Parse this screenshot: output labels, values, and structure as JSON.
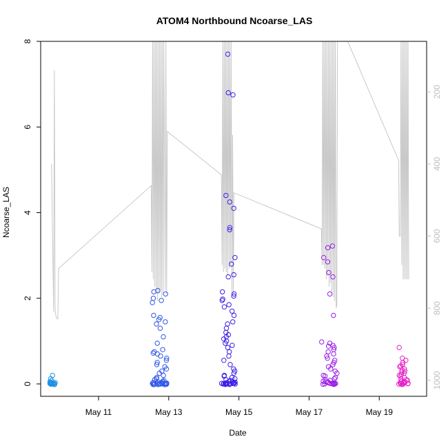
{
  "chart_data": {
    "type": "scatter",
    "title": "ATOM4 Northbound Ncoarse_LAS",
    "xlabel": "Date",
    "ylabel": "Ncoarse_LAS",
    "x_ticks": [
      {
        "label": "May 11",
        "day": 11
      },
      {
        "label": "May 13",
        "day": 13
      },
      {
        "label": "May 15",
        "day": 15
      },
      {
        "label": "May 17",
        "day": 17
      },
      {
        "label": "May 19",
        "day": 19
      }
    ],
    "xlim_days": [
      9.35,
      20.35
    ],
    "ylim": [
      0,
      8
    ],
    "y_ticks": [
      0,
      2,
      4,
      6,
      8
    ],
    "secondary_axis": {
      "ticks": [
        200,
        400,
        600,
        800,
        1000
      ],
      "lim": [
        1010,
        60
      ],
      "color": "#bdbdbd",
      "line_color": "#c8c8c8"
    },
    "clusters": [
      {
        "day_range": [
          9.6,
          9.78
        ],
        "color": "#1e90e6",
        "values": [
          0.2,
          0.12,
          0.08,
          0.05,
          0.03,
          0.02,
          0.01,
          0.0,
          0.0,
          0.0,
          0.01,
          0.02,
          0.0,
          0.0,
          0.04,
          0.0,
          0.0,
          0.0,
          0.0
        ]
      },
      {
        "day_range": [
          12.5,
          12.95
        ],
        "color": "#2f56e8",
        "values": [
          2.18,
          2.15,
          2.1,
          2.0,
          1.95,
          1.9,
          1.6,
          1.55,
          1.5,
          1.45,
          1.4,
          1.3,
          1.1,
          0.95,
          0.8,
          0.75,
          0.72,
          0.7,
          0.65,
          0.6,
          0.55,
          0.5,
          0.45,
          0.4,
          0.35,
          0.3,
          0.25,
          0.2,
          0.15,
          0.12,
          0.1,
          0.08,
          0.06,
          0.05,
          0.04,
          0.03,
          0.02,
          0.02,
          0.01,
          0.01,
          0.0,
          0.0,
          0.0,
          0.0,
          0.0,
          0.0,
          0.0,
          0.0,
          0.0,
          0.0,
          0.0,
          0.0,
          0.0,
          0.0
        ]
      },
      {
        "day_range": [
          14.5,
          14.9
        ],
        "color": "#3a1ee6",
        "values": [
          7.7,
          6.8,
          6.75,
          4.4,
          4.25,
          4.1,
          3.65,
          3.6,
          2.95,
          2.8,
          2.55,
          2.5,
          2.15,
          2.1,
          2.05,
          1.98,
          1.95,
          1.85,
          1.8,
          1.7,
          1.6,
          1.45,
          1.4,
          1.3,
          1.2,
          1.15,
          1.1,
          1.05,
          1.0,
          0.95,
          0.9,
          0.85,
          0.75,
          0.65,
          0.55,
          0.45,
          0.35,
          0.3,
          0.25,
          0.2,
          0.18,
          0.15,
          0.12,
          0.1,
          0.08,
          0.06,
          0.05,
          0.04,
          0.03,
          0.02,
          0.01,
          0.0,
          0.0,
          0.0,
          0.0,
          0.0,
          0.0,
          0.0,
          0.0,
          0.0,
          0.0,
          0.0,
          0.0,
          0.0
        ]
      },
      {
        "day_range": [
          17.35,
          17.8
        ],
        "color": "#9a1ee6",
        "values": [
          3.22,
          3.18,
          2.95,
          2.85,
          2.6,
          2.5,
          2.1,
          1.6,
          0.98,
          0.95,
          0.9,
          0.88,
          0.85,
          0.8,
          0.75,
          0.7,
          0.65,
          0.6,
          0.55,
          0.5,
          0.45,
          0.4,
          0.35,
          0.3,
          0.25,
          0.2,
          0.18,
          0.15,
          0.12,
          0.1,
          0.08,
          0.06,
          0.05,
          0.04,
          0.03,
          0.02,
          0.01,
          0.0,
          0.0,
          0.0,
          0.0,
          0.0,
          0.0,
          0.0,
          0.0,
          0.0,
          0.0
        ]
      },
      {
        "day_range": [
          19.55,
          19.85
        ],
        "color": "#e61ec8",
        "values": [
          0.85,
          0.6,
          0.55,
          0.5,
          0.45,
          0.42,
          0.4,
          0.35,
          0.32,
          0.3,
          0.28,
          0.25,
          0.22,
          0.2,
          0.18,
          0.15,
          0.12,
          0.1,
          0.08,
          0.06,
          0.05,
          0.04,
          0.03,
          0.02,
          0.01,
          0.0,
          0.0,
          0.0,
          0.0,
          0.0,
          0.0,
          0.0,
          0.0
        ]
      }
    ],
    "secondary_series": [
      [
        9.66,
        400
      ],
      [
        9.72,
        810
      ],
      [
        9.74,
        140
      ],
      [
        9.76,
        800
      ],
      [
        9.78,
        820
      ],
      [
        9.82,
        830
      ],
      [
        9.84,
        830
      ],
      [
        9.86,
        690
      ],
      [
        12.5,
        460
      ],
      [
        12.52,
        700
      ],
      [
        12.54,
        60
      ],
      [
        12.56,
        720
      ],
      [
        12.58,
        60
      ],
      [
        12.6,
        740
      ],
      [
        12.62,
        60
      ],
      [
        12.64,
        760
      ],
      [
        12.66,
        60
      ],
      [
        12.68,
        780
      ],
      [
        12.7,
        60
      ],
      [
        12.72,
        760
      ],
      [
        12.74,
        60
      ],
      [
        12.76,
        750
      ],
      [
        12.78,
        60
      ],
      [
        12.8,
        770
      ],
      [
        12.82,
        60
      ],
      [
        12.84,
        760
      ],
      [
        12.86,
        60
      ],
      [
        12.9,
        750
      ],
      [
        12.92,
        60
      ],
      [
        12.94,
        760
      ],
      [
        12.96,
        310
      ],
      [
        14.5,
        430
      ],
      [
        14.52,
        680
      ],
      [
        14.54,
        60
      ],
      [
        14.56,
        700
      ],
      [
        14.58,
        60
      ],
      [
        14.6,
        690
      ],
      [
        14.62,
        60
      ],
      [
        14.64,
        700
      ],
      [
        14.66,
        60
      ],
      [
        14.68,
        710
      ],
      [
        14.7,
        60
      ],
      [
        14.72,
        690
      ],
      [
        14.74,
        60
      ],
      [
        14.76,
        680
      ],
      [
        14.78,
        60
      ],
      [
        14.8,
        760
      ],
      [
        14.82,
        320
      ],
      [
        14.84,
        760
      ],
      [
        14.86,
        480
      ],
      [
        17.35,
        580
      ],
      [
        17.37,
        680
      ],
      [
        17.39,
        60
      ],
      [
        17.41,
        680
      ],
      [
        17.43,
        60
      ],
      [
        17.45,
        690
      ],
      [
        17.47,
        60
      ],
      [
        17.49,
        720
      ],
      [
        17.51,
        60
      ],
      [
        17.53,
        710
      ],
      [
        17.55,
        60
      ],
      [
        17.57,
        740
      ],
      [
        17.59,
        60
      ],
      [
        17.61,
        730
      ],
      [
        17.63,
        60
      ],
      [
        17.65,
        760
      ],
      [
        17.67,
        60
      ],
      [
        17.69,
        770
      ],
      [
        17.71,
        60
      ],
      [
        17.73,
        780
      ],
      [
        17.75,
        60
      ],
      [
        17.77,
        800
      ],
      [
        17.79,
        790
      ],
      [
        17.81,
        60
      ],
      [
        18.1,
        60
      ],
      [
        19.55,
        390
      ],
      [
        19.57,
        600
      ],
      [
        19.6,
        600
      ],
      [
        19.62,
        60
      ],
      [
        19.64,
        680
      ],
      [
        19.66,
        60
      ],
      [
        19.68,
        720
      ],
      [
        19.7,
        60
      ],
      [
        19.72,
        720
      ],
      [
        19.74,
        60
      ],
      [
        19.76,
        720
      ],
      [
        19.78,
        60
      ],
      [
        19.8,
        720
      ],
      [
        19.82,
        60
      ],
      [
        19.84,
        720
      ]
    ]
  }
}
